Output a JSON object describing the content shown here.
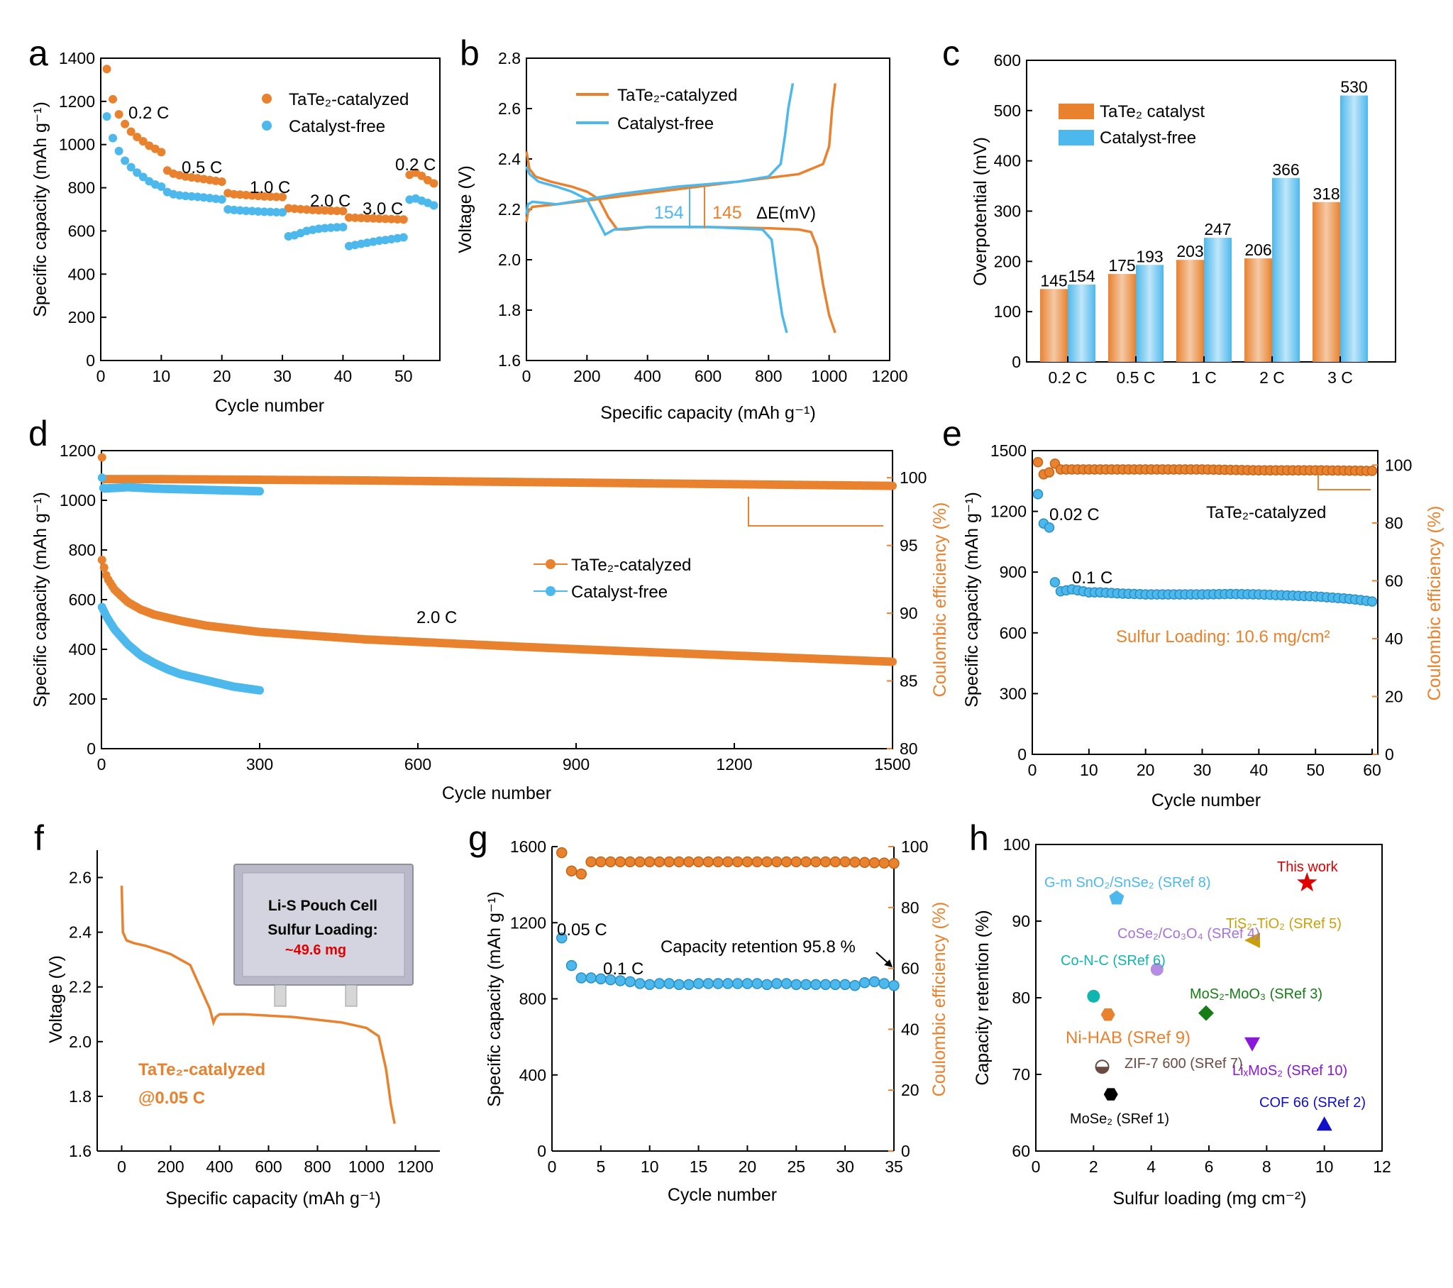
{
  "colors": {
    "orange": "#E8822E",
    "blue": "#4DB8EC",
    "orange_light": "#F5C9A6",
    "blue_light": "#BFE6FA"
  },
  "panels": {
    "a": {
      "letter": "a",
      "xlabel": "Cycle number",
      "ylabel": "Specific capacity (mAh g⁻¹)",
      "legend": [
        "TaTe₂-catalyzed",
        "Catalyst-free"
      ],
      "rates": [
        "0.2 C",
        "0.5 C",
        "1.0 C",
        "2.0 C",
        "3.0 C",
        "0.2 C"
      ],
      "xticks": [
        "0",
        "10",
        "20",
        "30",
        "40",
        "50"
      ],
      "yticks": [
        "0",
        "200",
        "400",
        "600",
        "800",
        "1000",
        "1200",
        "1400"
      ]
    },
    "b": {
      "letter": "b",
      "xlabel": "Specific capacity (mAh g⁻¹)",
      "ylabel": "Voltage (V)",
      "legend": [
        "TaTe₂-catalyzed",
        "Catalyst-free"
      ],
      "ann_blue": "154",
      "ann_orange": "145",
      "ann_de": "ΔE(mV)",
      "xticks": [
        "0",
        "200",
        "400",
        "600",
        "800",
        "1000",
        "1200"
      ],
      "yticks": [
        "1.6",
        "1.8",
        "2.0",
        "2.2",
        "2.4",
        "2.6",
        "2.8"
      ]
    },
    "c": {
      "letter": "c",
      "ylabel": "Overpotential (mV)",
      "legend": [
        "TaTe₂ catalyst",
        "Catalyst-free"
      ],
      "yticks": [
        "0",
        "100",
        "200",
        "300",
        "400",
        "500",
        "600"
      ]
    },
    "d": {
      "letter": "d",
      "xlabel": "Cycle number",
      "ylabel": "Specific capacity (mAh g⁻¹)",
      "ylabel2": "Coulombic efficiency (%)",
      "legend": [
        "TaTe₂-catalyzed",
        "Catalyst-free"
      ],
      "rate": "2.0 C",
      "xticks": [
        "0",
        "300",
        "600",
        "900",
        "1200",
        "1500"
      ],
      "yticks": [
        "0",
        "200",
        "400",
        "600",
        "800",
        "1000",
        "1200"
      ],
      "y2ticks": [
        "80",
        "85",
        "90",
        "95",
        "100"
      ]
    },
    "e": {
      "letter": "e",
      "xlabel": "Cycle number",
      "ylabel": "Specific capacity (mAh g⁻¹)",
      "ylabel2": "Coulombic efficiency (%)",
      "label_cell": "TaTe₂-catalyzed",
      "rate1": "0.02 C",
      "rate2": "0.1 C",
      "loading": "Sulfur Loading: 10.6 mg/cm²",
      "xticks": [
        "0",
        "10",
        "20",
        "30",
        "40",
        "50",
        "60"
      ],
      "yticks": [
        "0",
        "300",
        "600",
        "900",
        "1200",
        "1500"
      ],
      "y2ticks": [
        "0",
        "20",
        "40",
        "60",
        "80",
        "100"
      ]
    },
    "f": {
      "letter": "f",
      "xlabel": "Specific capacity (mAh g⁻¹)",
      "ylabel": "Voltage (V)",
      "label1": "TaTe₂-catalyzed",
      "label2": "@0.05 C",
      "photo_line1": "Li-S Pouch Cell",
      "photo_line2": "Sulfur Loading:",
      "photo_line3": "~49.6 mg",
      "xticks": [
        "0",
        "200",
        "400",
        "600",
        "800",
        "1000",
        "1200"
      ],
      "yticks": [
        "1.6",
        "1.8",
        "2.0",
        "2.2",
        "2.4",
        "2.6"
      ]
    },
    "g": {
      "letter": "g",
      "xlabel": "Cycle number",
      "ylabel": "Specific capacity (mAh g⁻¹)",
      "ylabel2": "Coulombic efficiency (%)",
      "rate1": "0.05 C",
      "rate2": "0.1 C",
      "retention": "Capacity retention 95.8 %",
      "xticks": [
        "0",
        "5",
        "10",
        "15",
        "20",
        "25",
        "30",
        "35"
      ],
      "yticks": [
        "0",
        "400",
        "800",
        "1200",
        "1600"
      ],
      "y2ticks": [
        "0",
        "20",
        "40",
        "60",
        "80",
        "100"
      ]
    },
    "h": {
      "letter": "h",
      "xlabel": "Sulfur loading (mg cm⁻²)",
      "ylabel": "Capacity retention (%)",
      "xticks": [
        "0",
        "2",
        "4",
        "6",
        "8",
        "10",
        "12"
      ],
      "yticks": [
        "60",
        "70",
        "80",
        "90",
        "100"
      ]
    }
  },
  "chart_data": [
    {
      "panel": "a",
      "type": "scatter",
      "xlim": [
        0,
        56
      ],
      "ylim": [
        0,
        1400
      ],
      "series": [
        {
          "name": "TaTe₂-catalyzed",
          "x": [
            1,
            2,
            3,
            4,
            5,
            6,
            7,
            8,
            9,
            10,
            11,
            12,
            13,
            14,
            15,
            16,
            17,
            18,
            19,
            20,
            21,
            22,
            23,
            24,
            25,
            26,
            27,
            28,
            29,
            30,
            31,
            32,
            33,
            34,
            35,
            36,
            37,
            38,
            39,
            40,
            41,
            42,
            43,
            44,
            45,
            46,
            47,
            48,
            49,
            50,
            51,
            52,
            53,
            54,
            55
          ],
          "y": [
            1350,
            1210,
            1140,
            1095,
            1060,
            1035,
            1015,
            995,
            980,
            965,
            880,
            865,
            858,
            852,
            848,
            844,
            840,
            836,
            832,
            828,
            775,
            770,
            768,
            766,
            764,
            762,
            760,
            759,
            758,
            757,
            705,
            703,
            701,
            699,
            697,
            696,
            695,
            694,
            693,
            692,
            662,
            661,
            660,
            659,
            658,
            657,
            656,
            655,
            654,
            653,
            860,
            870,
            855,
            835,
            820
          ]
        },
        {
          "name": "Catalyst-free",
          "x": [
            1,
            2,
            3,
            4,
            5,
            6,
            7,
            8,
            9,
            10,
            11,
            12,
            13,
            14,
            15,
            16,
            17,
            18,
            19,
            20,
            21,
            22,
            23,
            24,
            25,
            26,
            27,
            28,
            29,
            30,
            31,
            32,
            33,
            34,
            35,
            36,
            37,
            38,
            39,
            40,
            41,
            42,
            43,
            44,
            45,
            46,
            47,
            48,
            49,
            50,
            51,
            52,
            53,
            54,
            55
          ],
          "y": [
            1130,
            1030,
            970,
            925,
            895,
            870,
            850,
            830,
            815,
            805,
            780,
            770,
            765,
            762,
            760,
            758,
            755,
            752,
            749,
            746,
            700,
            697,
            695,
            693,
            692,
            690,
            689,
            688,
            687,
            686,
            575,
            580,
            590,
            600,
            605,
            610,
            613,
            615,
            617,
            618,
            530,
            535,
            540,
            545,
            550,
            555,
            558,
            562,
            566,
            570,
            745,
            750,
            740,
            730,
            718
          ]
        }
      ]
    },
    {
      "panel": "b",
      "type": "line",
      "xlim": [
        0,
        1200
      ],
      "ylim": [
        1.6,
        2.8
      ],
      "series": [
        {
          "name": "TaTe₂-catalyzed",
          "part": "discharge",
          "x": [
            0,
            10,
            30,
            80,
            150,
            200,
            240,
            270,
            300,
            330,
            400,
            600,
            800,
            900,
            940,
            960,
            980,
            1000,
            1020
          ],
          "y": [
            2.43,
            2.36,
            2.33,
            2.31,
            2.29,
            2.27,
            2.24,
            2.17,
            2.12,
            2.12,
            2.13,
            2.13,
            2.125,
            2.12,
            2.11,
            2.05,
            1.9,
            1.78,
            1.71
          ]
        },
        {
          "name": "TaTe₂-catalyzed",
          "part": "charge",
          "x": [
            0,
            5,
            20,
            100,
            300,
            500,
            700,
            900,
            980,
            1000,
            1010,
            1020
          ],
          "y": [
            2.15,
            2.19,
            2.21,
            2.22,
            2.25,
            2.28,
            2.31,
            2.34,
            2.38,
            2.45,
            2.6,
            2.7
          ]
        },
        {
          "name": "Catalyst-free",
          "part": "discharge",
          "x": [
            0,
            10,
            40,
            100,
            150,
            200,
            230,
            260,
            290,
            400,
            600,
            780,
            810,
            830,
            845,
            860
          ],
          "y": [
            2.37,
            2.34,
            2.31,
            2.29,
            2.27,
            2.24,
            2.17,
            2.1,
            2.12,
            2.13,
            2.13,
            2.12,
            2.08,
            1.9,
            1.78,
            1.71
          ]
        },
        {
          "name": "Catalyst-free",
          "part": "charge",
          "x": [
            0,
            5,
            20,
            100,
            300,
            500,
            600,
            700,
            800,
            840,
            855,
            865,
            880
          ],
          "y": [
            2.18,
            2.22,
            2.23,
            2.22,
            2.26,
            2.29,
            2.3,
            2.31,
            2.33,
            2.38,
            2.5,
            2.6,
            2.7
          ]
        }
      ]
    },
    {
      "panel": "c",
      "type": "bar",
      "categories": [
        "0.2 C",
        "0.5 C",
        "1 C",
        "2 C",
        "3 C"
      ],
      "ylim": [
        0,
        600
      ],
      "series": [
        {
          "name": "TaTe₂ catalyst",
          "values": [
            145,
            175,
            203,
            206,
            318
          ]
        },
        {
          "name": "Catalyst-free",
          "values": [
            154,
            193,
            247,
            366,
            530
          ]
        }
      ]
    },
    {
      "panel": "d",
      "type": "scatter",
      "xlim": [
        0,
        1500
      ],
      "ylim": [
        0,
        1200
      ],
      "y2lim": [
        80,
        102
      ],
      "series": [
        {
          "name": "TaTe₂-catalyzed",
          "axis": "capacity",
          "x": [
            1,
            10,
            25,
            50,
            75,
            100,
            150,
            200,
            300,
            400,
            500,
            600,
            800,
            1000,
            1200,
            1500
          ],
          "y": [
            760,
            690,
            640,
            590,
            560,
            540,
            515,
            495,
            470,
            455,
            440,
            430,
            410,
            392,
            375,
            350
          ]
        },
        {
          "name": "Catalyst-free",
          "axis": "capacity",
          "x": [
            1,
            10,
            25,
            50,
            75,
            100,
            125,
            150,
            200,
            250,
            300
          ],
          "y": [
            570,
            530,
            480,
            420,
            375,
            345,
            320,
            300,
            275,
            250,
            235
          ]
        },
        {
          "name": "TaTe₂-catalyzed",
          "axis": "coulombic",
          "x": [
            1,
            2,
            5,
            100,
            500,
            1000,
            1500
          ],
          "y": [
            101.5,
            99.8,
            99.9,
            99.9,
            99.8,
            99.6,
            99.4
          ]
        },
        {
          "name": "Catalyst-free",
          "axis": "coulombic",
          "x": [
            1,
            2,
            5,
            50,
            100,
            200,
            300
          ],
          "y": [
            100,
            99.3,
            99.2,
            99.3,
            99.2,
            99.1,
            99.0
          ]
        }
      ]
    },
    {
      "panel": "e",
      "type": "scatter",
      "xlim": [
        0,
        61
      ],
      "ylim": [
        0,
        1500
      ],
      "y2lim": [
        0,
        105
      ],
      "series": [
        {
          "name": "TaTe₂-catalyzed",
          "axis": "capacity",
          "x": [
            1,
            2,
            3,
            4,
            5,
            6,
            7,
            8,
            9,
            10,
            12,
            15,
            20,
            25,
            30,
            35,
            40,
            45,
            50,
            55,
            57,
            60
          ],
          "y": [
            1285,
            1140,
            1120,
            850,
            805,
            810,
            815,
            810,
            805,
            800,
            800,
            795,
            790,
            790,
            790,
            792,
            790,
            785,
            780,
            770,
            765,
            755
          ]
        },
        {
          "name": "TaTe₂-catalyzed",
          "axis": "coulombic",
          "x": [
            1,
            2,
            3,
            4,
            5,
            10,
            20,
            30,
            40,
            50,
            60
          ],
          "y": [
            101,
            96.8,
            97.5,
            100.5,
            98.5,
            98.5,
            98.5,
            98.5,
            98.2,
            98.2,
            98.0
          ]
        }
      ]
    },
    {
      "panel": "f",
      "type": "line",
      "xlim": [
        -100,
        1300
      ],
      "ylim": [
        1.6,
        2.7
      ],
      "series": [
        {
          "name": "TaTe₂-catalyzed",
          "x": [
            0,
            5,
            20,
            50,
            100,
            200,
            280,
            320,
            360,
            375,
            385,
            400,
            500,
            700,
            900,
            1000,
            1050,
            1080,
            1100,
            1115
          ],
          "y": [
            2.57,
            2.4,
            2.37,
            2.36,
            2.35,
            2.32,
            2.28,
            2.2,
            2.12,
            2.07,
            2.09,
            2.1,
            2.1,
            2.09,
            2.07,
            2.05,
            2.02,
            1.9,
            1.77,
            1.7
          ]
        }
      ]
    },
    {
      "panel": "g",
      "type": "scatter",
      "xlim": [
        0,
        35
      ],
      "ylim": [
        0,
        1600
      ],
      "y2lim": [
        0,
        100
      ],
      "series": [
        {
          "name": "capacity",
          "axis": "capacity",
          "x": [
            1,
            2,
            3,
            4,
            5,
            6,
            7,
            8,
            9,
            10,
            11,
            12,
            13,
            14,
            15,
            16,
            17,
            18,
            19,
            20,
            21,
            22,
            23,
            24,
            25,
            26,
            27,
            28,
            29,
            30,
            31,
            32,
            33,
            34,
            35
          ],
          "y": [
            1120,
            975,
            910,
            910,
            905,
            900,
            895,
            890,
            880,
            875,
            880,
            880,
            875,
            875,
            880,
            880,
            880,
            880,
            880,
            880,
            880,
            875,
            880,
            880,
            875,
            875,
            875,
            875,
            875,
            875,
            870,
            885,
            890,
            880,
            870
          ]
        },
        {
          "name": "coulombic",
          "axis": "coulombic",
          "x": [
            1,
            2,
            3,
            4,
            5,
            10,
            15,
            20,
            25,
            30,
            35
          ],
          "y": [
            98,
            92,
            91,
            95,
            95,
            95,
            95,
            95,
            95,
            95,
            94.5
          ]
        }
      ]
    },
    {
      "panel": "h",
      "type": "scatter",
      "xlim": [
        0,
        12
      ],
      "ylim": [
        60,
        100
      ],
      "points": [
        {
          "label": "This work",
          "x": 9.4,
          "y": 95
        },
        {
          "label": "G-m SnO₂/SnSe₂ (SRef 8)",
          "x": 2.8,
          "y": 93
        },
        {
          "label": "CoSe₂/Co₃O₄ (SRef 4)",
          "x": 4.2,
          "y": 83.7
        },
        {
          "label": "TiS₂-TiO₂ (SRef 5)",
          "x": 7.5,
          "y": 87.5
        },
        {
          "label": "Co-N-C (SRef 6)",
          "x": 2.0,
          "y": 80.2
        },
        {
          "label": "MoS₂-MoO₃ (SRef 3)",
          "x": 5.9,
          "y": 78
        },
        {
          "label": "Ni-HAB (SRef 9)",
          "x": 2.5,
          "y": 77.8
        },
        {
          "label": "LiₓMoS₂ (SRef 10)",
          "x": 7.5,
          "y": 74
        },
        {
          "label": "ZIF-7 600 (SRef 7)",
          "x": 2.3,
          "y": 71
        },
        {
          "label": "MoSe₂ (SRef 1)",
          "x": 2.6,
          "y": 67.4
        },
        {
          "label": "COF 66 (SRef 2)",
          "x": 10.0,
          "y": 63.5
        }
      ]
    }
  ]
}
